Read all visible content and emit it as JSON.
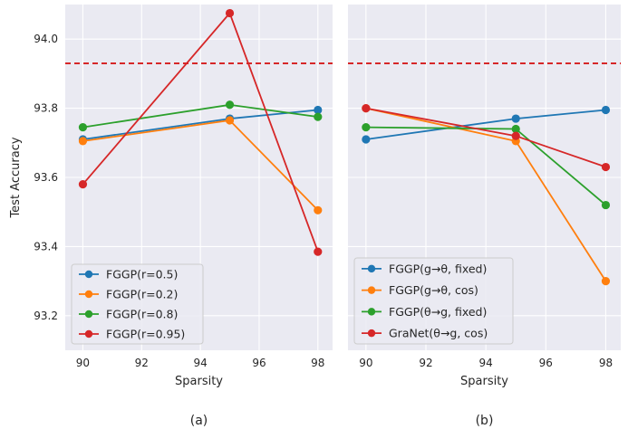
{
  "chart_data": [
    {
      "type": "line",
      "caption": "(a)",
      "xlabel": "Sparsity",
      "ylabel": "Test Accuracy",
      "x": [
        90,
        95,
        98
      ],
      "xticks": [
        "90",
        "92",
        "94",
        "96",
        "98"
      ],
      "yticks": [
        "93.2",
        "93.4",
        "93.6",
        "93.8",
        "94.0"
      ],
      "xlim": [
        89.4,
        98.5
      ],
      "ylim": [
        93.1,
        94.1
      ],
      "grid": true,
      "legend_position": "lower-left",
      "baseline": {
        "value": 93.93,
        "color": "#d62728",
        "style": "dashed"
      },
      "series": [
        {
          "name": "FGGP(r=0.5)",
          "color": "#1f77b4",
          "values": [
            93.71,
            93.77,
            93.795
          ]
        },
        {
          "name": "FGGP(r=0.2)",
          "color": "#ff7f0e",
          "values": [
            93.705,
            93.765,
            93.505
          ]
        },
        {
          "name": "FGGP(r=0.8)",
          "color": "#2ca02c",
          "values": [
            93.745,
            93.81,
            93.775
          ]
        },
        {
          "name": "FGGP(r=0.95)",
          "color": "#d62728",
          "values": [
            93.58,
            94.075,
            93.385
          ]
        }
      ]
    },
    {
      "type": "line",
      "caption": "(b)",
      "xlabel": "Sparsity",
      "ylabel": "",
      "x": [
        90,
        95,
        98
      ],
      "xticks": [
        "90",
        "92",
        "94",
        "96",
        "98"
      ],
      "xlim": [
        89.4,
        98.5
      ],
      "ylim": [
        93.1,
        94.1
      ],
      "grid": true,
      "legend_position": "lower-left",
      "baseline": {
        "value": 93.93,
        "color": "#d62728",
        "style": "dashed"
      },
      "series": [
        {
          "name": "FGGP(g→θ, fixed)",
          "color": "#1f77b4",
          "values": [
            93.71,
            93.77,
            93.795
          ]
        },
        {
          "name": "FGGP(g→θ, cos)",
          "color": "#ff7f0e",
          "values": [
            93.8,
            93.705,
            93.3
          ]
        },
        {
          "name": "FGGP(θ→g, fixed)",
          "color": "#2ca02c",
          "values": [
            93.745,
            93.74,
            93.52
          ]
        },
        {
          "name": "GraNet(θ→g, cos)",
          "color": "#d62728",
          "values": [
            93.8,
            93.72,
            93.63
          ]
        }
      ]
    }
  ]
}
